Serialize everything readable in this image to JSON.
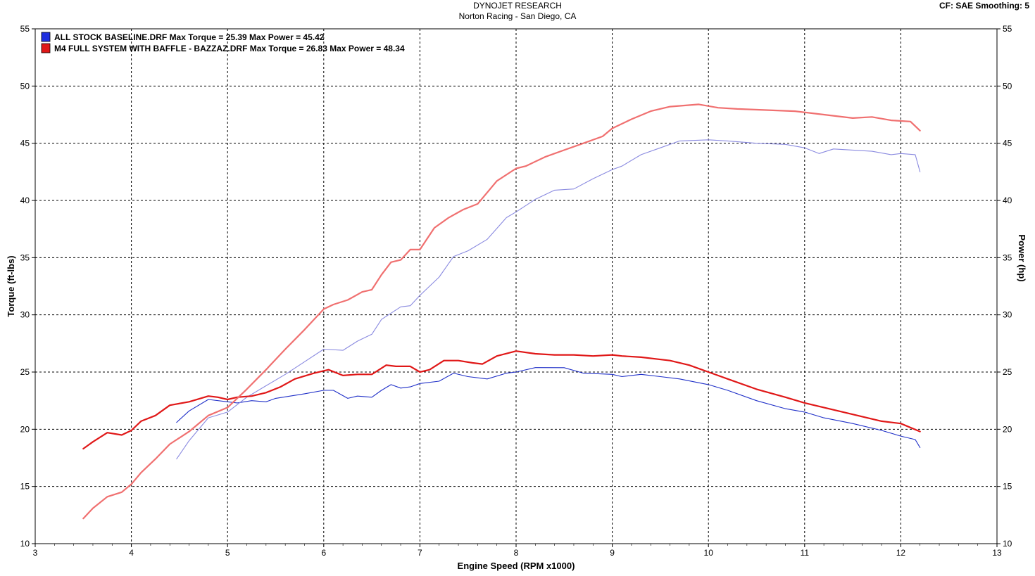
{
  "header": {
    "title": "DYNOJET RESEARCH",
    "subtitle": "Norton Racing - San Diego, CA",
    "cf_info": "CF: SAE  Smoothing: 5"
  },
  "chart_data": {
    "type": "line",
    "xlabel": "Engine Speed (RPM x1000)",
    "ylabel_left": "Torque (ft-lbs)",
    "ylabel_right": "Power (hp)",
    "xlim": [
      3,
      13
    ],
    "ylim": [
      10,
      55
    ],
    "x_ticks": [
      "3",
      "4",
      "5",
      "6",
      "7",
      "8",
      "9",
      "10",
      "11",
      "12",
      "13"
    ],
    "y_ticks": [
      "10",
      "15",
      "20",
      "25",
      "30",
      "35",
      "40",
      "45",
      "50",
      "55"
    ],
    "grid": true,
    "legend_position": "top-left",
    "legend": [
      {
        "label": "ALL STOCK BASELINE.DRF Max Torque = 25.39 Max Power = 45.42",
        "color": "#1f2fe0"
      },
      {
        "label": "M4 FULL SYSTEM WITH BAFFLE - BAZZAZ.DRF Max Torque = 26.83 Max Power = 48.34",
        "color": "#e01818"
      }
    ],
    "series": [
      {
        "name": "ALL STOCK BASELINE.DRF",
        "measure": "torque",
        "color": "#2030c8",
        "x": [
          4.47,
          4.6,
          4.8,
          5.0,
          5.1,
          5.25,
          5.4,
          5.5,
          5.65,
          5.8,
          6.0,
          6.1,
          6.25,
          6.35,
          6.5,
          6.6,
          6.7,
          6.8,
          6.9,
          7.0,
          7.2,
          7.35,
          7.5,
          7.7,
          7.9,
          8.0,
          8.2,
          8.5,
          8.7,
          9.0,
          9.1,
          9.3,
          9.5,
          9.7,
          10.0,
          10.2,
          10.5,
          10.8,
          11.0,
          11.2,
          11.5,
          11.8,
          12.0,
          12.15,
          12.2
        ],
        "y": [
          20.6,
          21.6,
          22.6,
          22.4,
          22.3,
          22.5,
          22.4,
          22.7,
          22.9,
          23.1,
          23.4,
          23.4,
          22.7,
          22.9,
          22.8,
          23.4,
          23.9,
          23.6,
          23.7,
          24.0,
          24.2,
          24.9,
          24.6,
          24.4,
          24.9,
          25.0,
          25.39,
          25.38,
          24.9,
          24.8,
          24.6,
          24.8,
          24.6,
          24.4,
          23.9,
          23.4,
          22.5,
          21.8,
          21.5,
          21.0,
          20.5,
          19.9,
          19.4,
          19.1,
          18.4
        ]
      },
      {
        "name": "ALL STOCK BASELINE.DRF",
        "measure": "power",
        "color": "#8a8ae0",
        "x": [
          4.47,
          4.6,
          4.8,
          5.0,
          5.2,
          5.4,
          5.6,
          5.8,
          6.0,
          6.2,
          6.35,
          6.5,
          6.6,
          6.8,
          6.9,
          7.0,
          7.2,
          7.35,
          7.5,
          7.7,
          7.9,
          8.0,
          8.2,
          8.4,
          8.6,
          8.8,
          9.0,
          9.1,
          9.3,
          9.5,
          9.7,
          10.0,
          10.2,
          10.5,
          10.8,
          11.0,
          11.15,
          11.3,
          11.5,
          11.7,
          11.9,
          12.0,
          12.15,
          12.2
        ],
        "y": [
          17.4,
          19.0,
          21.0,
          21.5,
          22.8,
          23.8,
          24.8,
          25.9,
          27.0,
          26.9,
          27.7,
          28.3,
          29.6,
          30.7,
          30.8,
          31.7,
          33.3,
          35.1,
          35.6,
          36.6,
          38.5,
          39.0,
          40.1,
          40.9,
          41.0,
          41.9,
          42.7,
          43.0,
          44.0,
          44.6,
          45.2,
          45.3,
          45.2,
          45.0,
          44.9,
          44.6,
          44.1,
          44.5,
          44.4,
          44.3,
          44.0,
          44.1,
          44.0,
          42.5
        ]
      },
      {
        "name": "M4 FULL SYSTEM WITH BAFFLE - BAZZAZ.DRF",
        "measure": "torque",
        "color": "#e01818",
        "x": [
          3.5,
          3.6,
          3.75,
          3.9,
          4.0,
          4.1,
          4.25,
          4.4,
          4.6,
          4.8,
          4.9,
          5.0,
          5.1,
          5.25,
          5.4,
          5.55,
          5.7,
          5.9,
          6.05,
          6.2,
          6.35,
          6.5,
          6.65,
          6.75,
          6.9,
          7.0,
          7.1,
          7.25,
          7.4,
          7.55,
          7.65,
          7.8,
          8.0,
          8.2,
          8.4,
          8.6,
          8.8,
          9.0,
          9.1,
          9.3,
          9.6,
          9.8,
          10.0,
          10.2,
          10.5,
          10.8,
          11.0,
          11.2,
          11.5,
          11.8,
          12.0,
          12.2
        ],
        "y": [
          18.3,
          18.9,
          19.7,
          19.5,
          19.9,
          20.7,
          21.2,
          22.1,
          22.4,
          22.9,
          22.8,
          22.6,
          22.8,
          22.9,
          23.2,
          23.7,
          24.4,
          24.9,
          25.2,
          24.7,
          24.8,
          24.8,
          25.6,
          25.5,
          25.5,
          25.0,
          25.2,
          26.0,
          26.0,
          25.8,
          25.7,
          26.4,
          26.83,
          26.6,
          26.5,
          26.5,
          26.4,
          26.5,
          26.4,
          26.3,
          26.0,
          25.6,
          25.0,
          24.4,
          23.5,
          22.8,
          22.3,
          21.9,
          21.3,
          20.7,
          20.5,
          19.8
        ]
      },
      {
        "name": "M4 FULL SYSTEM WITH BAFFLE - BAZZAZ.DRF",
        "measure": "power",
        "color": "#f07070",
        "x": [
          3.5,
          3.6,
          3.75,
          3.9,
          4.0,
          4.1,
          4.25,
          4.4,
          4.6,
          4.8,
          5.0,
          5.2,
          5.4,
          5.6,
          5.8,
          6.0,
          6.1,
          6.25,
          6.4,
          6.5,
          6.6,
          6.7,
          6.8,
          6.9,
          7.0,
          7.15,
          7.3,
          7.45,
          7.6,
          7.8,
          8.0,
          8.1,
          8.3,
          8.5,
          8.7,
          8.9,
          9.0,
          9.2,
          9.4,
          9.6,
          9.9,
          10.1,
          10.3,
          10.6,
          10.9,
          11.1,
          11.3,
          11.5,
          11.7,
          11.9,
          12.1,
          12.2
        ],
        "y": [
          12.2,
          13.1,
          14.1,
          14.5,
          15.2,
          16.2,
          17.4,
          18.7,
          19.8,
          21.2,
          21.9,
          23.5,
          25.2,
          27.0,
          28.7,
          30.5,
          30.9,
          31.3,
          32.0,
          32.2,
          33.5,
          34.6,
          34.8,
          35.7,
          35.7,
          37.6,
          38.5,
          39.2,
          39.7,
          41.7,
          42.8,
          43.0,
          43.8,
          44.4,
          45.0,
          45.6,
          46.3,
          47.1,
          47.8,
          48.2,
          48.4,
          48.1,
          48.0,
          47.9,
          47.8,
          47.6,
          47.4,
          47.2,
          47.3,
          47.0,
          46.9,
          46.1
        ]
      }
    ]
  }
}
